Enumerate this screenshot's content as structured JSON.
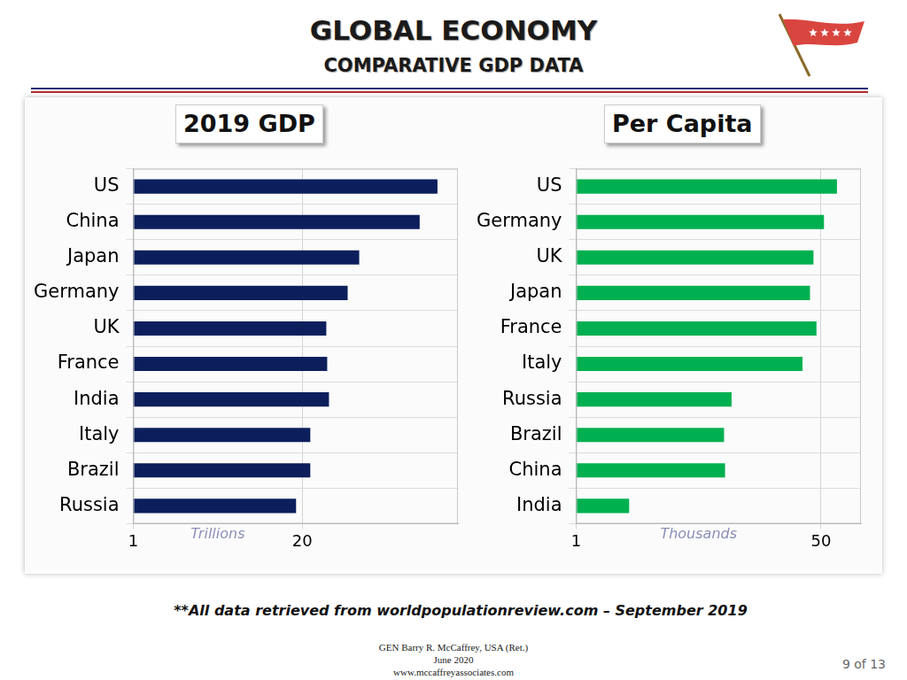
{
  "header": {
    "title": "GLOBAL ECONOMY",
    "subtitle": "COMPARATIVE GDP DATA"
  },
  "chart_data": [
    {
      "type": "bar",
      "orientation": "horizontal",
      "title": "2019 GDP",
      "xlabel": "Trillions",
      "categories": [
        "US",
        "China",
        "Japan",
        "Germany",
        "UK",
        "France",
        "India",
        "Italy",
        "Brazil",
        "Russia"
      ],
      "values": [
        35.2,
        33.2,
        26.4,
        25.1,
        22.7,
        22.8,
        23.0,
        20.9,
        20.9,
        19.3
      ],
      "color": "#0c1f5c",
      "xlim": [
        1,
        37.5
      ],
      "xticks": [
        1,
        20
      ],
      "grid": true
    },
    {
      "type": "bar",
      "orientation": "horizontal",
      "title": "Per Capita",
      "xlabel": "Thousands",
      "categories": [
        "US",
        "Germany",
        "UK",
        "Japan",
        "France",
        "Italy",
        "Russia",
        "Brazil",
        "China",
        "India"
      ],
      "values": [
        53.2,
        50.6,
        48.5,
        47.8,
        49.1,
        46.3,
        32.1,
        30.6,
        30.8,
        11.6
      ],
      "color": "#00b050",
      "xlim": [
        1,
        58
      ],
      "xticks": [
        1,
        50
      ],
      "grid": true
    }
  ],
  "footnote": "**All data retrieved from worldpopulationreview.com – September 2019",
  "footer": {
    "author": "GEN Barry R. McCaffrey, USA (Ret.)",
    "date": "June 2020",
    "website": "www.mccaffreyassociates.com",
    "page": "9 of 13"
  }
}
